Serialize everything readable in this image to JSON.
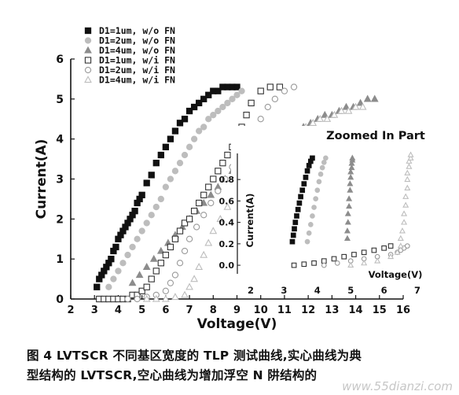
{
  "chart_data": [
    {
      "type": "scatter",
      "xlabel": "Voltage(V)",
      "ylabel": "Current(A)",
      "xlim": [
        2,
        16
      ],
      "ylim": [
        0,
        6
      ],
      "xticks": [
        "2",
        "3",
        "4",
        "5",
        "6",
        "7",
        "8",
        "9",
        "10",
        "11",
        "12",
        "13",
        "14",
        "15",
        "16"
      ],
      "yticks": [
        "0",
        "1",
        "2",
        "3",
        "4",
        "5",
        "6"
      ],
      "legend_position": "top-left",
      "series": [
        {
          "name": "D1=1um, w/o FN",
          "color": "#111111",
          "marker": "square-filled",
          "x": [
            3.1,
            3.2,
            3.3,
            3.4,
            3.5,
            3.6,
            3.7,
            3.8,
            3.9,
            4.0,
            4.1,
            4.2,
            4.3,
            4.4,
            4.5,
            4.6,
            4.7,
            4.8,
            4.9,
            5.0,
            5.2,
            5.4,
            5.6,
            5.8,
            6.0,
            6.2,
            6.4,
            6.6,
            6.8,
            7.0,
            7.2,
            7.4,
            7.6,
            7.8,
            8.0,
            8.2,
            8.4,
            8.6,
            8.8,
            9.0
          ],
          "y": [
            0.3,
            0.5,
            0.6,
            0.7,
            0.8,
            0.9,
            1.0,
            1.2,
            1.3,
            1.5,
            1.6,
            1.7,
            1.8,
            1.9,
            2.0,
            2.1,
            2.2,
            2.4,
            2.5,
            2.6,
            2.9,
            3.1,
            3.4,
            3.6,
            3.8,
            4.0,
            4.2,
            4.4,
            4.5,
            4.7,
            4.8,
            4.9,
            5.0,
            5.1,
            5.2,
            5.2,
            5.3,
            5.3,
            5.3,
            5.3
          ]
        },
        {
          "name": "D1=2um, w/o FN",
          "color": "#bdbdbd",
          "marker": "circle-filled",
          "x": [
            3.6,
            3.8,
            4.0,
            4.2,
            4.4,
            4.6,
            4.8,
            5.0,
            5.2,
            5.4,
            5.6,
            5.8,
            6.0,
            6.2,
            6.4,
            6.6,
            6.8,
            7.0,
            7.2,
            7.4,
            7.6,
            7.8,
            8.0,
            8.2,
            8.4,
            8.6,
            8.8,
            9.0,
            9.2
          ],
          "y": [
            0.3,
            0.5,
            0.7,
            0.9,
            1.1,
            1.3,
            1.5,
            1.7,
            1.9,
            2.1,
            2.3,
            2.5,
            2.8,
            3.0,
            3.2,
            3.4,
            3.6,
            3.8,
            4.0,
            4.2,
            4.3,
            4.5,
            4.6,
            4.7,
            4.8,
            4.9,
            5.0,
            5.1,
            5.2
          ]
        },
        {
          "name": "D1=4um, w/o FN",
          "color": "#8c8c8c",
          "marker": "triangle-filled",
          "x": [
            4.6,
            4.9,
            5.2,
            5.5,
            5.8,
            6.1,
            6.4,
            6.7,
            7.0,
            7.3,
            7.6,
            7.9,
            8.2,
            8.5,
            8.8,
            9.1,
            9.4,
            9.7,
            10.0,
            10.3,
            10.6,
            10.9,
            11.2,
            11.5,
            11.8,
            12.1,
            12.4,
            12.7,
            13.0,
            13.3,
            13.6,
            13.9,
            14.2,
            14.5,
            14.8
          ],
          "y": [
            0.4,
            0.6,
            0.8,
            1.0,
            1.2,
            1.4,
            1.6,
            1.8,
            2.0,
            2.2,
            2.4,
            2.6,
            2.8,
            3.0,
            3.2,
            3.4,
            3.5,
            3.6,
            3.7,
            3.8,
            3.9,
            4.0,
            4.1,
            4.2,
            4.3,
            4.4,
            4.5,
            4.6,
            4.6,
            4.7,
            4.8,
            4.8,
            4.9,
            5.0,
            5.0
          ]
        },
        {
          "name": "D1=1um, w/i FN",
          "color": "#333333",
          "marker": "square-open",
          "x": [
            3.2,
            3.4,
            3.6,
            3.8,
            4.0,
            4.2,
            4.4,
            4.6,
            4.8,
            5.0,
            5.2,
            5.4,
            5.6,
            5.8,
            6.0,
            6.2,
            6.4,
            6.6,
            6.8,
            7.0,
            7.2,
            7.4,
            7.6,
            7.8,
            8.0,
            8.2,
            8.4,
            8.6,
            8.8,
            9.0,
            9.2,
            9.4,
            9.6,
            10.0,
            10.4,
            10.8
          ],
          "y": [
            0.0,
            0.0,
            0.0,
            0.0,
            0.0,
            0.0,
            0.0,
            0.1,
            0.1,
            0.2,
            0.3,
            0.5,
            0.7,
            0.9,
            1.1,
            1.3,
            1.5,
            1.7,
            1.9,
            2.0,
            2.2,
            2.4,
            2.6,
            2.8,
            3.0,
            3.2,
            3.4,
            3.6,
            3.8,
            4.0,
            4.3,
            4.6,
            4.9,
            5.2,
            5.3,
            5.3
          ]
        },
        {
          "name": "D1=2um, w/i FN",
          "color": "#999999",
          "marker": "circle-open",
          "x": [
            4.4,
            4.8,
            5.2,
            5.6,
            6.0,
            6.2,
            6.4,
            6.6,
            6.8,
            7.0,
            7.3,
            7.6,
            7.9,
            8.2,
            8.5,
            8.8,
            9.1,
            9.4,
            9.7,
            10.0,
            10.3,
            10.6,
            11.0,
            11.4
          ],
          "y": [
            0.0,
            0.0,
            0.05,
            0.1,
            0.2,
            0.4,
            0.6,
            0.9,
            1.2,
            1.5,
            1.8,
            2.1,
            2.4,
            2.7,
            3.0,
            3.3,
            3.6,
            3.9,
            4.2,
            4.5,
            4.8,
            5.0,
            5.2,
            5.3
          ]
        },
        {
          "name": "D1=4um, w/i FN",
          "color": "#bdbdbd",
          "marker": "triangle-open",
          "x": [
            5.2,
            5.6,
            6.0,
            6.4,
            6.8,
            7.0,
            7.2,
            7.4,
            7.6,
            7.8,
            8.0,
            8.3,
            8.6,
            8.9,
            9.2,
            9.5,
            9.8,
            10.1,
            10.4,
            10.7,
            11.0,
            11.3,
            11.6,
            11.9,
            12.2,
            12.5,
            12.8,
            13.1,
            13.4,
            13.7,
            14.0,
            14.3
          ],
          "y": [
            0.0,
            0.0,
            0.0,
            0.05,
            0.1,
            0.3,
            0.5,
            0.8,
            1.1,
            1.4,
            1.7,
            2.0,
            2.3,
            2.6,
            2.9,
            3.1,
            3.3,
            3.5,
            3.7,
            3.9,
            4.0,
            4.1,
            4.2,
            4.3,
            4.4,
            4.5,
            4.5,
            4.6,
            4.7,
            4.7,
            4.8,
            4.8
          ]
        }
      ]
    },
    {
      "type": "scatter",
      "title": "Zoomed In Part",
      "xlabel": "Voltage(V)",
      "ylabel": "Current(A)",
      "xlim": [
        1.6,
        7.4
      ],
      "ylim": [
        -0.08,
        1.08
      ],
      "xticks": [
        "2",
        "3",
        "4",
        "5",
        "6",
        "7"
      ],
      "yticks": [
        "0.0",
        "0.2",
        "0.4",
        "0.6",
        "0.8"
      ],
      "series": [
        {
          "name": "D1=1um, w/o FN",
          "color": "#111111",
          "marker": "square-filled",
          "x": [
            3.25,
            3.28,
            3.31,
            3.34,
            3.38,
            3.42,
            3.46,
            3.5,
            3.55,
            3.6,
            3.65,
            3.7,
            3.75,
            3.8,
            3.85
          ],
          "y": [
            0.22,
            0.28,
            0.34,
            0.4,
            0.46,
            0.52,
            0.58,
            0.64,
            0.7,
            0.76,
            0.82,
            0.88,
            0.93,
            0.97,
            1.0
          ]
        },
        {
          "name": "D1=2um, w/o FN",
          "color": "#bdbdbd",
          "marker": "circle-filled",
          "x": [
            3.7,
            3.75,
            3.8,
            3.85,
            3.9,
            3.95,
            4.0,
            4.05,
            4.1,
            4.15,
            4.2,
            4.25
          ],
          "y": [
            0.22,
            0.3,
            0.38,
            0.46,
            0.54,
            0.62,
            0.7,
            0.78,
            0.85,
            0.91,
            0.96,
            1.0
          ]
        },
        {
          "name": "D1=4um, w/o FN",
          "color": "#8c8c8c",
          "marker": "triangle-filled",
          "x": [
            4.9,
            4.9,
            4.92,
            4.92,
            4.95,
            4.95,
            4.98,
            4.98,
            5.0,
            5.0,
            5.03,
            5.03,
            5.05,
            5.05
          ],
          "y": [
            0.25,
            0.32,
            0.4,
            0.48,
            0.55,
            0.62,
            0.7,
            0.76,
            0.82,
            0.87,
            0.91,
            0.95,
            0.98,
            1.0
          ]
        },
        {
          "name": "D1=1um, w/i FN",
          "color": "#333333",
          "marker": "square-open",
          "x": [
            3.3,
            3.6,
            3.9,
            4.2,
            4.5,
            4.8,
            5.1,
            5.4,
            5.7,
            6.0,
            6.2
          ],
          "y": [
            0.0,
            0.01,
            0.02,
            0.04,
            0.06,
            0.08,
            0.1,
            0.12,
            0.14,
            0.16,
            0.18
          ]
        },
        {
          "name": "D1=2um, w/i FN",
          "color": "#999999",
          "marker": "circle-open",
          "x": [
            4.2,
            4.6,
            5.0,
            5.4,
            5.8,
            6.2,
            6.4,
            6.5,
            6.6,
            6.7
          ],
          "y": [
            0.0,
            0.02,
            0.04,
            0.06,
            0.08,
            0.1,
            0.12,
            0.14,
            0.16,
            0.18
          ]
        },
        {
          "name": "D1=4um, w/i FN",
          "color": "#bdbdbd",
          "marker": "triangle-open",
          "x": [
            5.0,
            5.4,
            5.8,
            6.2,
            6.4,
            6.5,
            6.5,
            6.55,
            6.6,
            6.6,
            6.65,
            6.65,
            6.7,
            6.7,
            6.7,
            6.75,
            6.75,
            6.8,
            6.8
          ],
          "y": [
            0.0,
            0.02,
            0.04,
            0.08,
            0.12,
            0.18,
            0.25,
            0.32,
            0.4,
            0.48,
            0.56,
            0.64,
            0.72,
            0.8,
            0.86,
            0.92,
            0.97,
            1.0,
            1.03
          ]
        }
      ]
    }
  ],
  "caption": {
    "line1": "图 4 LVTSCR 不同基区宽度的 TLP 测试曲线,实心曲线为典",
    "line2": "型结构的 LVTSCR,空心曲线为增加浮空 N 阱结构的"
  },
  "watermark": "www.55dianzi.com"
}
